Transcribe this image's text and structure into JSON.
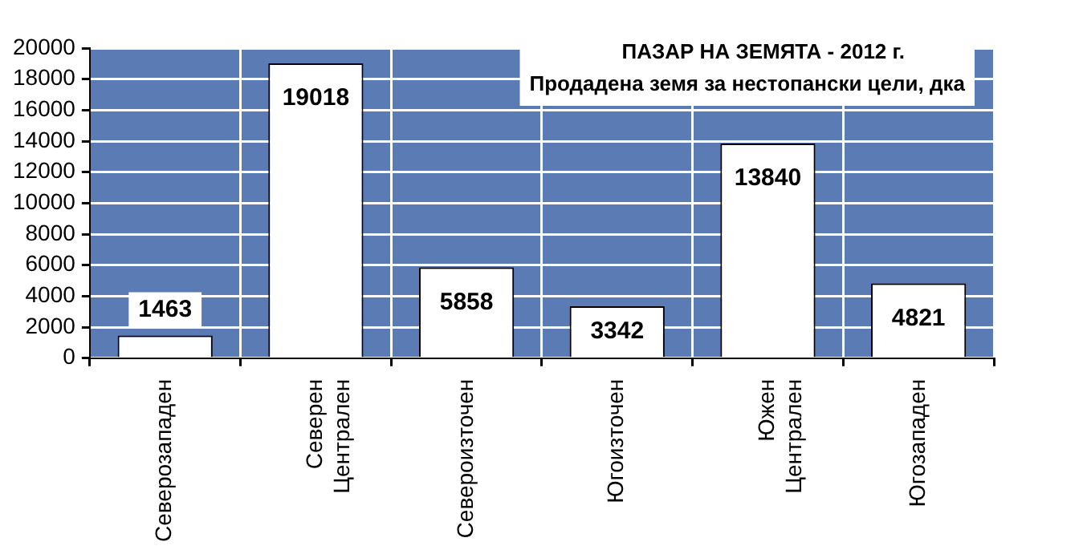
{
  "chart_data": {
    "type": "bar",
    "title": "ПАЗАР НА ЗЕМЯТА - 2012 г.",
    "subtitle": "Продадена земя за нестопански цели, дка",
    "categories": [
      "Северозападен",
      "Северен\nЦентрален",
      "Североизточен",
      "Югоизточен",
      "Южен\nЦентрален",
      "Югозападен"
    ],
    "values": [
      1463,
      19018,
      5858,
      3342,
      13840,
      4821
    ],
    "color": "#ffffff",
    "ylim": [
      0,
      20000
    ],
    "yticks": [
      0,
      2000,
      4000,
      6000,
      8000,
      10000,
      12000,
      14000,
      16000,
      18000,
      20000
    ],
    "grid": true,
    "legend": false,
    "data_labels": true
  }
}
